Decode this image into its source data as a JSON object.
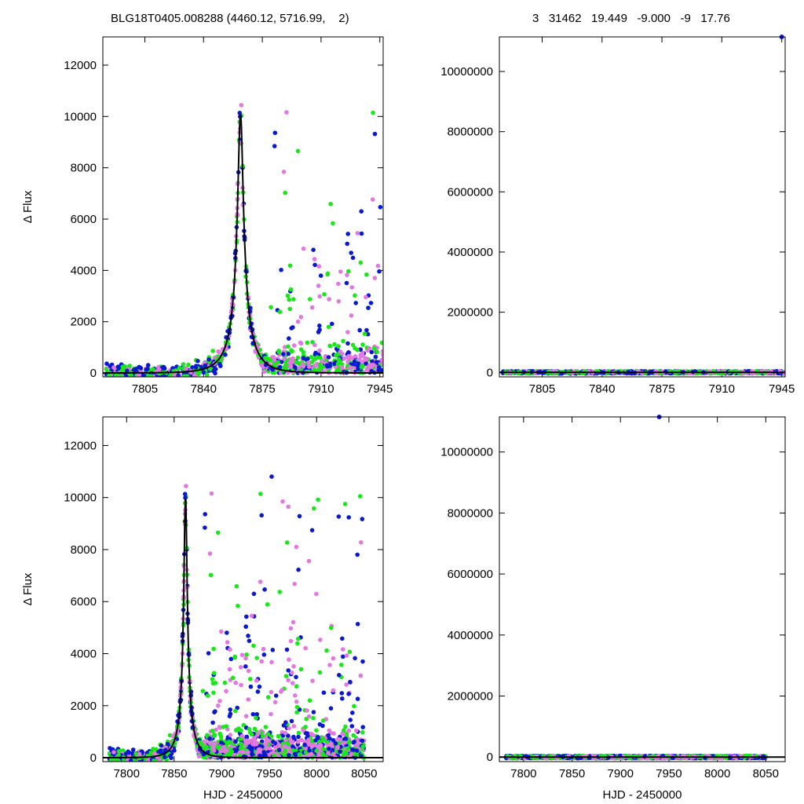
{
  "header": {
    "left_title": "BLG18T0405.008288 (4460.12, 5716.99,    2)",
    "right_title": "3   31462   19.449   -9.000   -9   17.76"
  },
  "colors": {
    "series_1": "#0a19d0",
    "series_2": "#e278e0",
    "series_3": "#18e818",
    "model": "#000000"
  },
  "model": {
    "t0": 7862,
    "peak": 10100,
    "tE": 14
  },
  "chart_data": [
    {
      "id": "top-left",
      "type": "scatter",
      "ylabel": "Δ Flux",
      "xlabel": "",
      "xlim": [
        7780,
        7947
      ],
      "ylim": [
        -150,
        13100
      ],
      "xticks": [
        7805,
        7840,
        7875,
        7910,
        7945
      ],
      "yticks": [
        0,
        2000,
        4000,
        6000,
        8000,
        10000,
        12000
      ],
      "grid": false,
      "legend": "none"
    },
    {
      "id": "top-right",
      "type": "scatter",
      "ylabel": "",
      "xlabel": "",
      "xlim": [
        7780,
        7947
      ],
      "ylim": [
        -150000,
        11150000
      ],
      "xticks": [
        7805,
        7840,
        7875,
        7910,
        7945
      ],
      "yticks": [
        0,
        2000000,
        4000000,
        6000000,
        8000000,
        10000000
      ],
      "grid": false,
      "legend": "none",
      "outlier": {
        "x": 7945,
        "y": 11150000
      }
    },
    {
      "id": "bottom-left",
      "type": "scatter",
      "ylabel": "Δ Flux",
      "xlabel": "HJD - 2450000",
      "xlim": [
        7775,
        8070
      ],
      "ylim": [
        -150,
        13100
      ],
      "xticks": [
        7800,
        7850,
        7900,
        7950,
        8000,
        8050
      ],
      "yticks": [
        0,
        2000,
        4000,
        6000,
        8000,
        10000,
        12000
      ],
      "grid": false,
      "legend": "none"
    },
    {
      "id": "bottom-right",
      "type": "scatter",
      "ylabel": "",
      "xlabel": "HJD - 2450000",
      "xlim": [
        7775,
        8070
      ],
      "ylim": [
        -150000,
        11150000
      ],
      "xticks": [
        7800,
        7850,
        7900,
        7950,
        8000,
        8050
      ],
      "yticks": [
        0,
        2000000,
        4000000,
        6000000,
        8000000,
        10000000
      ],
      "grid": false,
      "legend": "none",
      "outlier": {
        "x": 7940,
        "y": 11150000
      }
    }
  ]
}
